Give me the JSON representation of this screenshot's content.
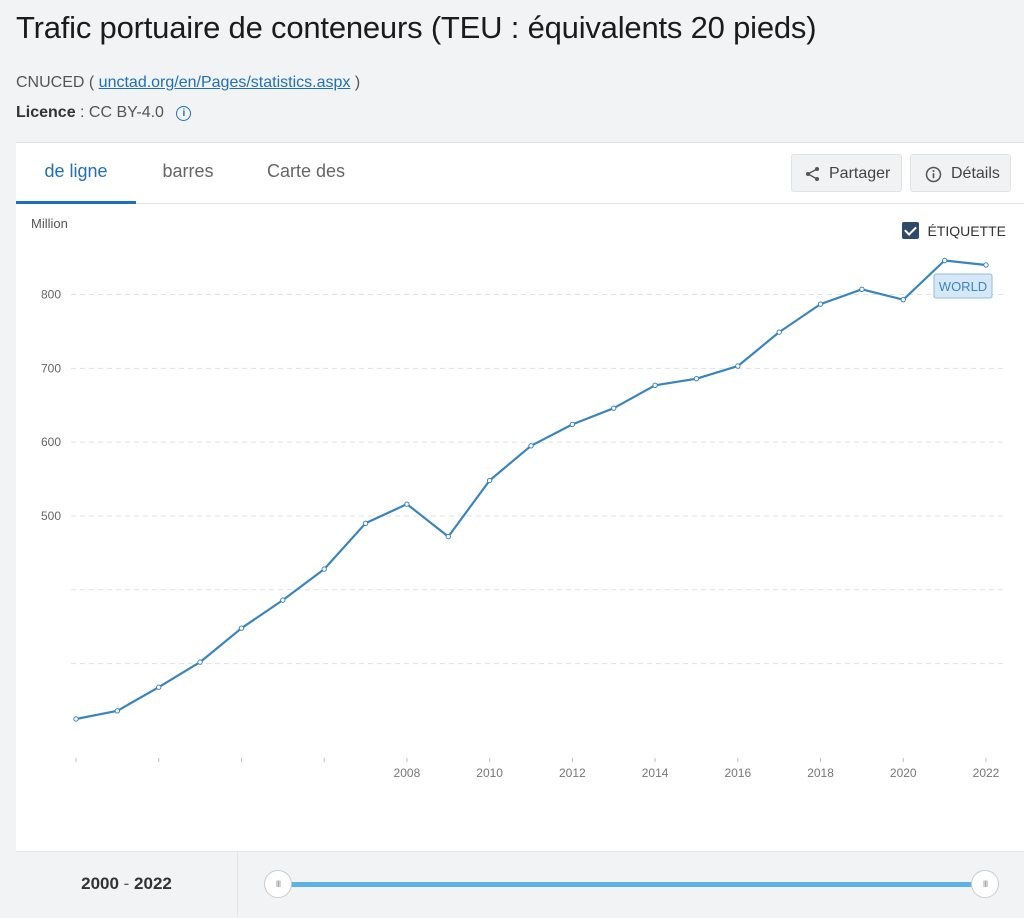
{
  "header": {
    "title": "Trafic portuaire de conteneurs (TEU : équivalents 20 pieds)",
    "source_prefix": "CNUCED ( ",
    "source_link": "unctad.org/en/Pages/statistics.aspx",
    "source_suffix": " )",
    "licence_label": "Licence",
    "licence_value": " : CC BY-4.0",
    "info_icon_glyph": "i"
  },
  "tabs": [
    {
      "label": "de ligne",
      "active": true
    },
    {
      "label": "barres",
      "active": false
    },
    {
      "label": "Carte des",
      "active": false
    }
  ],
  "actions": {
    "share_label": "Partager",
    "details_label": "Détails"
  },
  "label_toggle": {
    "label": "ÉTIQUETTE",
    "checked": true
  },
  "colors": {
    "accent": "#1f70b8",
    "line": "#3a85bd",
    "slider": "#5bb1ea"
  },
  "chart_data": {
    "type": "line",
    "title": "",
    "xlabel": "",
    "ylabel": "Million",
    "yticks": [
      500,
      600,
      700,
      800
    ],
    "ylim": [
      230,
      870
    ],
    "xlim": [
      2000,
      2022
    ],
    "xtick_labels": [
      2008,
      2010,
      2012,
      2014,
      2016,
      2018,
      2020,
      2022
    ],
    "grid": true,
    "series": [
      {
        "name": "WORLD",
        "x": [
          2000,
          2001,
          2002,
          2003,
          2004,
          2005,
          2006,
          2007,
          2008,
          2009,
          2010,
          2011,
          2012,
          2013,
          2014,
          2015,
          2016,
          2017,
          2018,
          2019,
          2020,
          2021,
          2022
        ],
        "values": [
          225,
          236,
          268,
          302,
          348,
          386,
          428,
          490,
          516,
          472,
          548,
          595,
          624,
          646,
          677,
          686,
          703,
          749,
          787,
          807,
          793,
          846,
          840
        ]
      }
    ]
  },
  "range": {
    "start": "2000",
    "separator": " - ",
    "end": "2022"
  },
  "slider": {
    "start_fraction": 0,
    "end_fraction": 1,
    "handle_glyph": "III"
  }
}
